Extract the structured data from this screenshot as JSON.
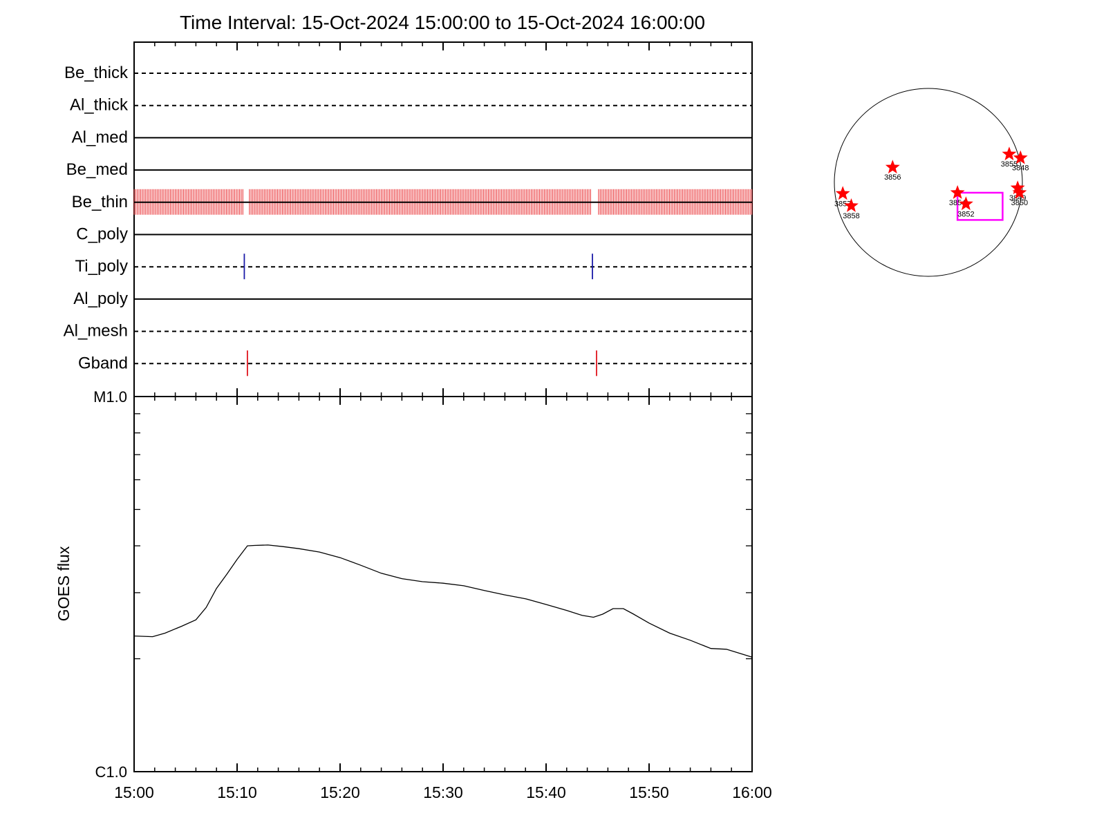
{
  "title": "Time Interval: 15-Oct-2024 15:00:00 to 15-Oct-2024 16:00:00",
  "colors": {
    "be_thin_bars": "#e8262a",
    "ti_poly_marks": "#1a1aa8",
    "gband_marks": "#e0141c",
    "stars": "#ff0000",
    "fov_box": "#ff00ff",
    "axes": "#000000"
  },
  "chart_data": [
    {
      "type": "timeline",
      "x_ticks": [
        "15:00",
        "15:10",
        "15:20",
        "15:30",
        "15:40",
        "15:50",
        "16:00"
      ],
      "xlim": [
        "15:00",
        "16:00"
      ],
      "rows": [
        {
          "label": "Be_thick",
          "line": "dashed",
          "events": []
        },
        {
          "label": "Al_thick",
          "line": "dashed",
          "events": []
        },
        {
          "label": "Al_med",
          "line": "solid",
          "events": []
        },
        {
          "label": "Be_med",
          "line": "solid",
          "events": []
        },
        {
          "label": "Be_thin",
          "line": "solid",
          "events": "continuous",
          "segments": [
            [
              "15:00",
              "15:10.6"
            ],
            [
              "15:11.2",
              "15:44.4"
            ],
            [
              "15:45.1",
              "16:00"
            ]
          ]
        },
        {
          "label": "C_poly",
          "line": "solid",
          "events": []
        },
        {
          "label": "Ti_poly",
          "line": "dashed",
          "events": [
            "15:10.7",
            "15:44.5"
          ]
        },
        {
          "label": "Al_poly",
          "line": "solid",
          "events": []
        },
        {
          "label": "Al_mesh",
          "line": "dashed",
          "events": []
        },
        {
          "label": "Gband",
          "line": "dashed",
          "events": [
            "15:11.0",
            "15:44.9"
          ]
        }
      ]
    },
    {
      "type": "line",
      "ylabel": "GOES flux",
      "y_scale": "log",
      "ylim": [
        1e-06,
        1e-05
      ],
      "y_tick_labels": [
        "C1.0",
        "M1.0"
      ],
      "x_ticks": [
        "15:00",
        "15:10",
        "15:20",
        "15:30",
        "15:40",
        "15:50",
        "16:00"
      ],
      "series": [
        {
          "x_minutes_after_1500": [
            0,
            1.8,
            3,
            4.6,
            6,
            7,
            8,
            9,
            10,
            11,
            11.7,
            13,
            14.5,
            16,
            18,
            20,
            22,
            24,
            26,
            28,
            30,
            32,
            34,
            36,
            38,
            40,
            42,
            43.5,
            44.6,
            45.5,
            46.5,
            47.5,
            48.5,
            50,
            52,
            54,
            56,
            57.5,
            59,
            60
          ],
          "flux": [
            2.3e-06,
            2.29e-06,
            2.34e-06,
            2.44e-06,
            2.54e-06,
            2.74e-06,
            3.08e-06,
            3.36e-06,
            3.68e-06,
            4e-06,
            4.01e-06,
            4.02e-06,
            3.98e-06,
            3.93e-06,
            3.85e-06,
            3.72e-06,
            3.55e-06,
            3.38e-06,
            3.27e-06,
            3.21e-06,
            3.18e-06,
            3.13e-06,
            3.04e-06,
            2.96e-06,
            2.89e-06,
            2.79e-06,
            2.69e-06,
            2.61e-06,
            2.58e-06,
            2.63e-06,
            2.72e-06,
            2.72e-06,
            2.63e-06,
            2.49e-06,
            2.34e-06,
            2.24e-06,
            2.13e-06,
            2.12e-06,
            2.06e-06,
            2.02e-06
          ]
        }
      ]
    },
    {
      "type": "scatter",
      "note_visible": "solar disk map",
      "points": [
        {
          "label": "3848",
          "x": 0.98,
          "y": 0.26
        },
        {
          "label": "3855",
          "x": 0.86,
          "y": 0.3
        },
        {
          "label": "3856",
          "x": -0.38,
          "y": 0.16
        },
        {
          "label": "3857",
          "x": -0.91,
          "y": -0.12
        },
        {
          "label": "3858",
          "x": -0.82,
          "y": -0.25
        },
        {
          "label": "3854",
          "x": 0.31,
          "y": -0.11
        },
        {
          "label": "3852",
          "x": 0.4,
          "y": -0.23
        },
        {
          "label": "3849",
          "x": 0.95,
          "y": -0.06
        },
        {
          "label": "3850",
          "x": 0.97,
          "y": -0.11
        }
      ],
      "fov_box": {
        "x0": 0.31,
        "x1": 0.79,
        "y0": -0.11,
        "y1": -0.4
      }
    }
  ]
}
